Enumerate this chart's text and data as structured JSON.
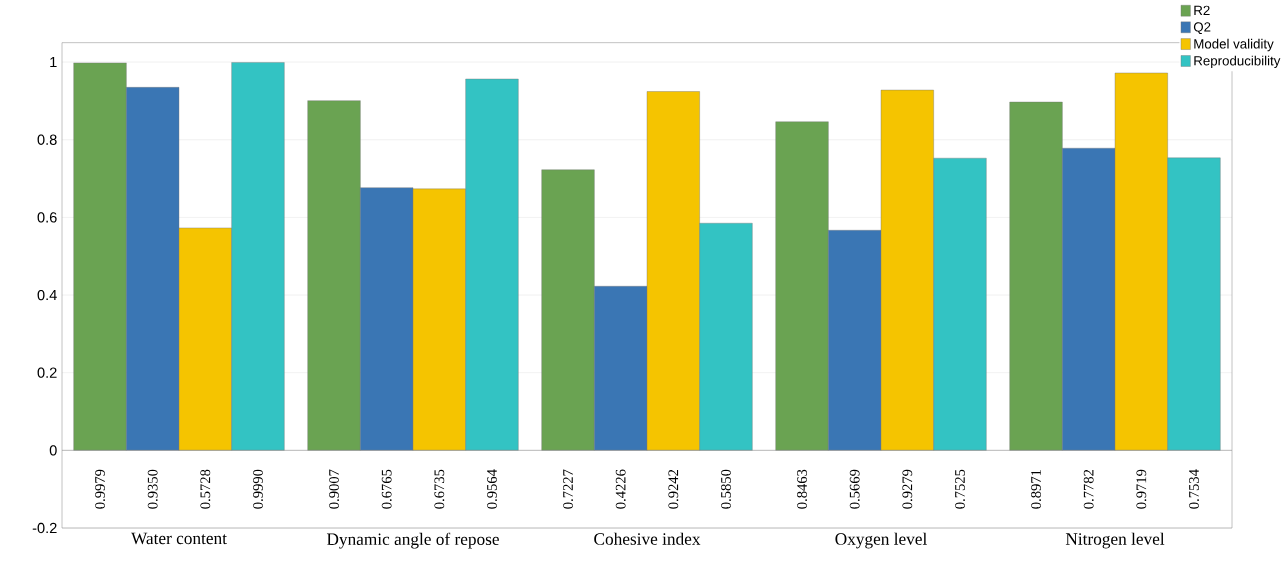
{
  "chart_data": {
    "type": "bar",
    "categories": [
      "Water content",
      "Dynamic angle of repose",
      "Cohesive index",
      "Oxygen level",
      "Nitrogen level"
    ],
    "series": [
      {
        "name": "R2",
        "color": "#6aa352",
        "values": [
          0.9979,
          0.9007,
          0.7227,
          0.8463,
          0.8971
        ],
        "value_labels": [
          "0.9979",
          "0.9007",
          "0.7227",
          "0.8463",
          "0.8971"
        ]
      },
      {
        "name": "Q2",
        "color": "#3a76b4",
        "values": [
          0.935,
          0.6765,
          0.4226,
          0.5669,
          0.7782
        ],
        "value_labels": [
          "0.9350",
          "0.6765",
          "0.4226",
          "0.5669",
          "0.7782"
        ]
      },
      {
        "name": "Model validity",
        "color": "#f5c400",
        "values": [
          0.5728,
          0.6735,
          0.9242,
          0.9279,
          0.9719
        ],
        "value_labels": [
          "0.5728",
          "0.6735",
          "0.9242",
          "0.9279",
          "0.9719"
        ]
      },
      {
        "name": "Reproducibility",
        "color": "#33c3c3",
        "values": [
          0.999,
          0.9564,
          0.585,
          0.7525,
          0.7534
        ],
        "value_labels": [
          "0.9990",
          "0.9564",
          "0.5850",
          "0.7525",
          "0.7534"
        ]
      }
    ],
    "ylim": [
      -0.2,
      1.05
    ],
    "yticks": [
      -0.2,
      0,
      0.2,
      0.4,
      0.6,
      0.8,
      1
    ],
    "grid": "y",
    "legend": "top right"
  }
}
